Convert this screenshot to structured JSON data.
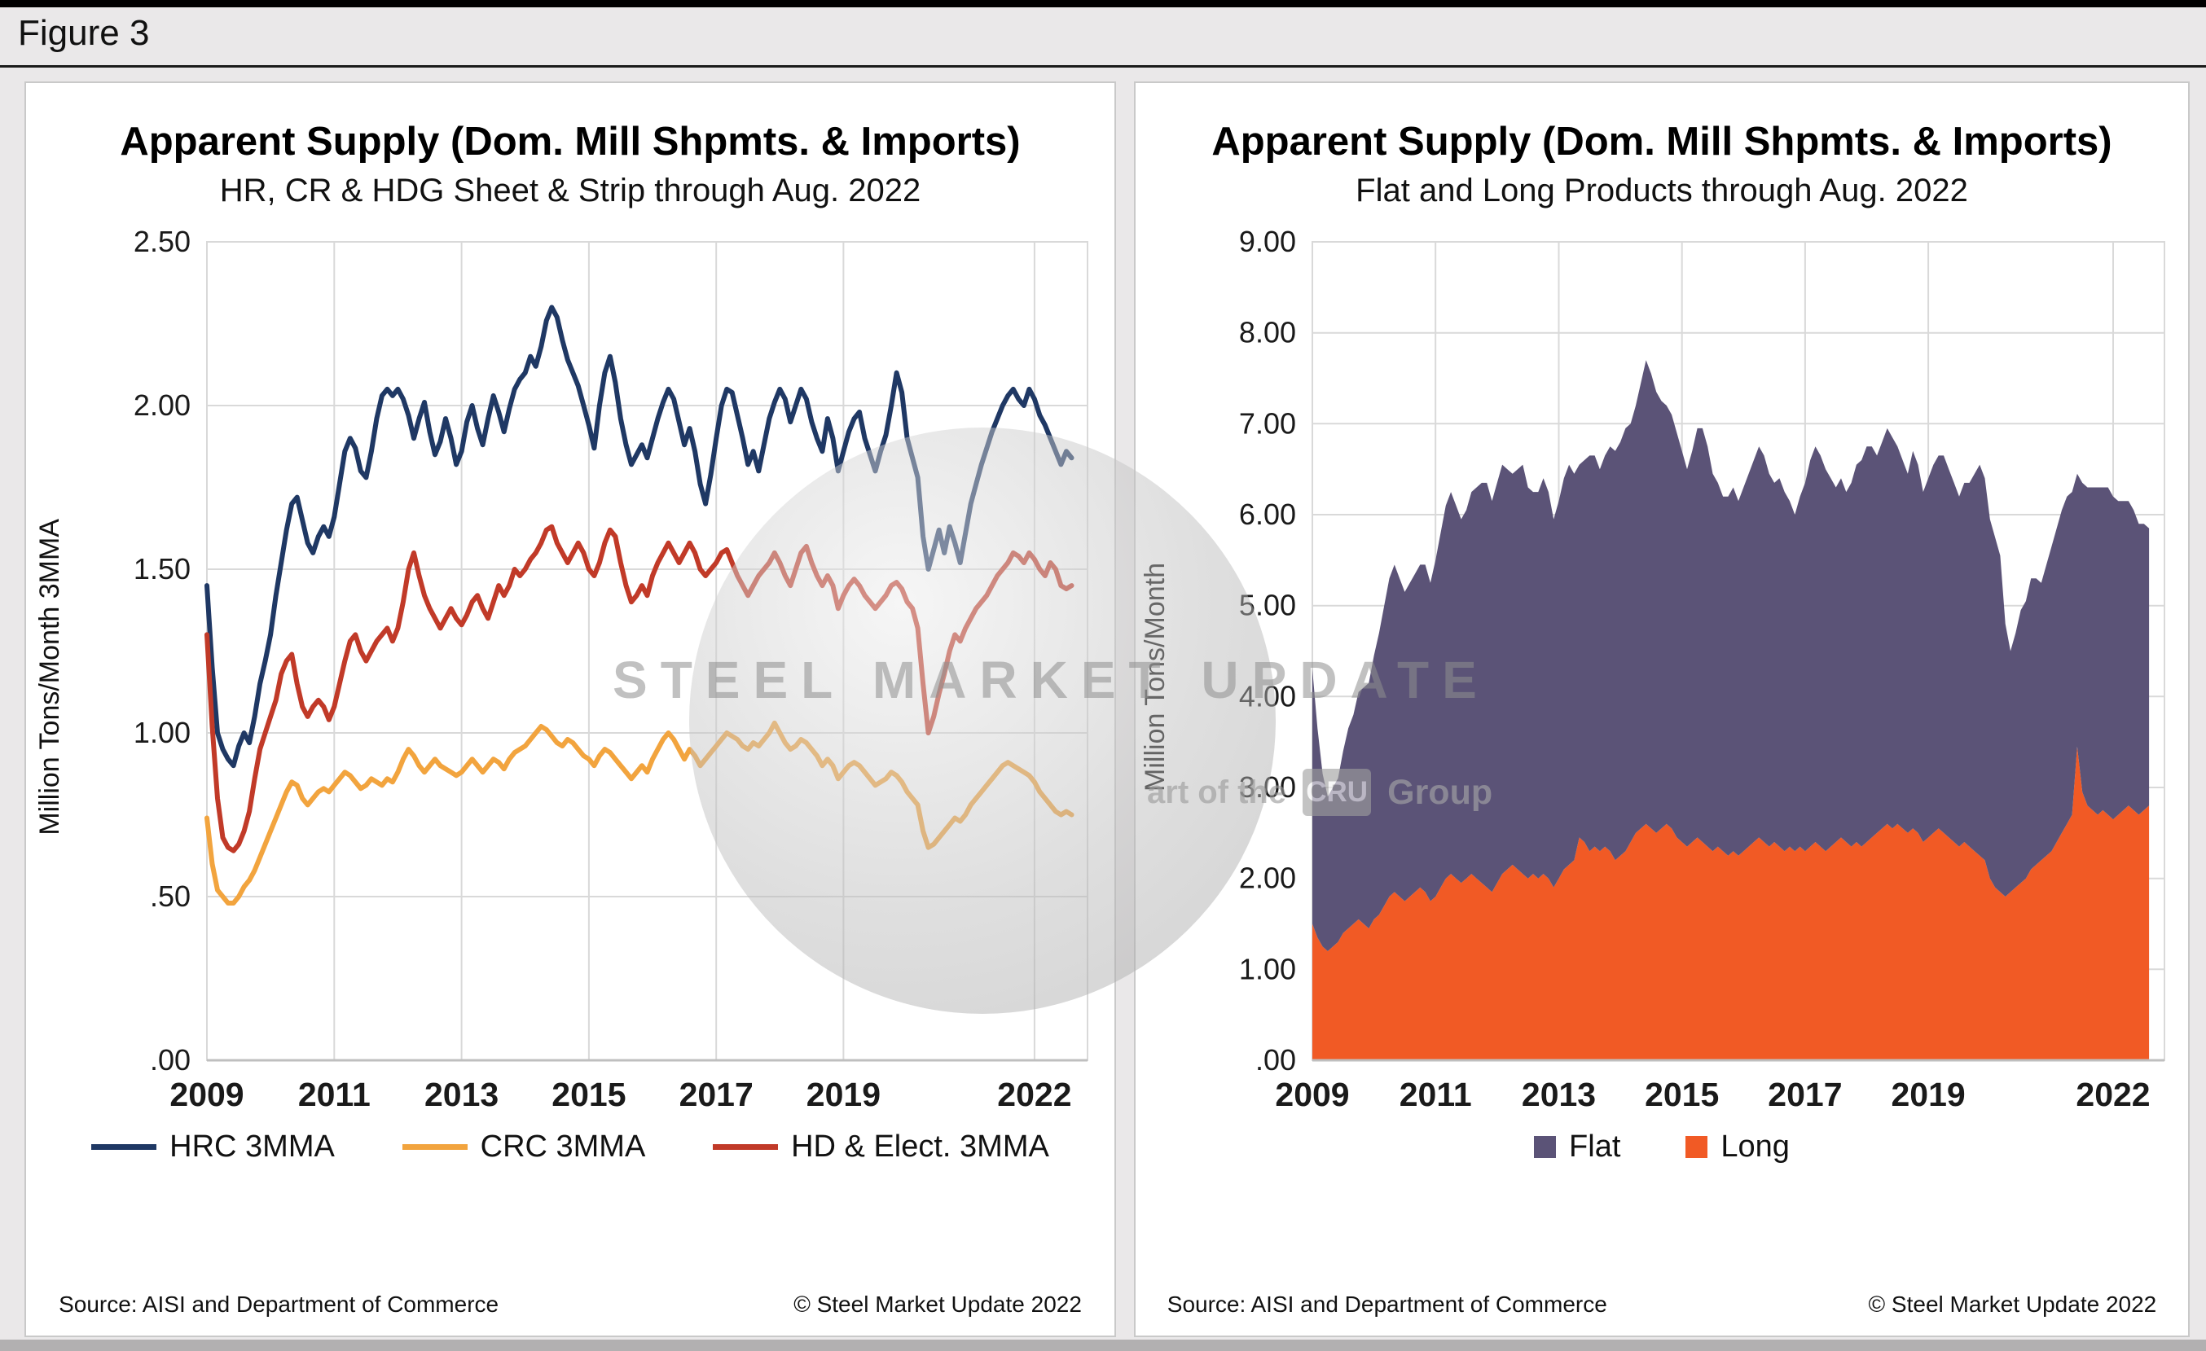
{
  "figure_label": "Figure 3",
  "watermark": {
    "line1": "STEEL MARKET UPDATE",
    "line2_prefix": "art of the",
    "line2_box": "CRU",
    "line2_suffix": "Group"
  },
  "chart_data": [
    {
      "type": "line",
      "title": "Apparent Supply (Dom. Mill Shpmts. & Imports)",
      "subtitle": "HR, CR & HDG Sheet & Strip through Aug. 2022",
      "ylabel": "Million Tons/Month 3MMA",
      "source": "Source: AISI and Department of Commerce",
      "copyright": "© Steel Market Update 2022",
      "x_start": "2009-01",
      "x_end": "2022-08",
      "ylim": [
        0,
        2.5
      ],
      "grid": true,
      "grid_color": "#d9d9d9",
      "legend_position": "bottom",
      "yticks": [
        {
          "v": 0.0,
          "label": ".00"
        },
        {
          "v": 0.5,
          "label": ".50"
        },
        {
          "v": 1.0,
          "label": "1.00"
        },
        {
          "v": 1.5,
          "label": "1.50"
        },
        {
          "v": 2.0,
          "label": "2.00"
        },
        {
          "v": 2.5,
          "label": "2.50"
        }
      ],
      "xticks": [
        {
          "m": 0,
          "label": "2009"
        },
        {
          "m": 24,
          "label": "2011"
        },
        {
          "m": 48,
          "label": "2013"
        },
        {
          "m": 72,
          "label": "2015"
        },
        {
          "m": 96,
          "label": "2017"
        },
        {
          "m": 120,
          "label": "2019"
        },
        {
          "m": 156,
          "label": "2022"
        }
      ],
      "series": [
        {
          "name": "HRC 3MMA",
          "color": "#1F3864",
          "values": [
            1.45,
            1.2,
            1.0,
            0.95,
            0.92,
            0.9,
            0.96,
            1.0,
            0.97,
            1.05,
            1.15,
            1.22,
            1.3,
            1.42,
            1.52,
            1.62,
            1.7,
            1.72,
            1.65,
            1.58,
            1.55,
            1.6,
            1.63,
            1.6,
            1.66,
            1.76,
            1.86,
            1.9,
            1.87,
            1.8,
            1.78,
            1.86,
            1.96,
            2.03,
            2.05,
            2.03,
            2.05,
            2.02,
            1.97,
            1.9,
            1.96,
            2.01,
            1.92,
            1.85,
            1.89,
            1.96,
            1.9,
            1.82,
            1.86,
            1.95,
            2.0,
            1.93,
            1.88,
            1.96,
            2.03,
            1.98,
            1.92,
            1.99,
            2.05,
            2.08,
            2.1,
            2.15,
            2.12,
            2.18,
            2.26,
            2.3,
            2.27,
            2.2,
            2.14,
            2.1,
            2.06,
            2.0,
            1.94,
            1.87,
            2.0,
            2.1,
            2.15,
            2.07,
            1.96,
            1.88,
            1.82,
            1.85,
            1.88,
            1.84,
            1.9,
            1.96,
            2.01,
            2.05,
            2.02,
            1.95,
            1.88,
            1.93,
            1.86,
            1.76,
            1.7,
            1.79,
            1.9,
            2.0,
            2.05,
            2.04,
            1.97,
            1.9,
            1.82,
            1.86,
            1.8,
            1.88,
            1.96,
            2.01,
            2.05,
            2.02,
            1.95,
            2.0,
            2.05,
            2.02,
            1.95,
            1.9,
            1.86,
            1.96,
            1.9,
            1.8,
            1.86,
            1.92,
            1.96,
            1.98,
            1.9,
            1.85,
            1.8,
            1.86,
            1.91,
            2.0,
            2.1,
            2.04,
            1.9,
            1.84,
            1.78,
            1.6,
            1.5,
            1.56,
            1.62,
            1.55,
            1.63,
            1.58,
            1.52,
            1.61,
            1.7,
            1.76,
            1.82,
            1.87,
            1.92,
            1.96,
            2.0,
            2.03,
            2.05,
            2.02,
            2.0,
            2.05,
            2.02,
            1.97,
            1.94,
            1.9,
            1.86,
            1.82,
            1.86,
            1.84
          ]
        },
        {
          "name": "CRC 3MMA",
          "color": "#F2A43E",
          "values": [
            0.74,
            0.6,
            0.52,
            0.5,
            0.48,
            0.48,
            0.5,
            0.53,
            0.55,
            0.58,
            0.62,
            0.66,
            0.7,
            0.74,
            0.78,
            0.82,
            0.85,
            0.84,
            0.8,
            0.78,
            0.8,
            0.82,
            0.83,
            0.82,
            0.84,
            0.86,
            0.88,
            0.87,
            0.85,
            0.83,
            0.84,
            0.86,
            0.85,
            0.84,
            0.86,
            0.85,
            0.88,
            0.92,
            0.95,
            0.93,
            0.9,
            0.88,
            0.9,
            0.92,
            0.9,
            0.89,
            0.88,
            0.87,
            0.88,
            0.9,
            0.92,
            0.9,
            0.88,
            0.9,
            0.92,
            0.91,
            0.89,
            0.92,
            0.94,
            0.95,
            0.96,
            0.98,
            1.0,
            1.02,
            1.01,
            0.99,
            0.97,
            0.96,
            0.98,
            0.97,
            0.95,
            0.93,
            0.92,
            0.9,
            0.93,
            0.95,
            0.94,
            0.92,
            0.9,
            0.88,
            0.86,
            0.88,
            0.9,
            0.88,
            0.92,
            0.95,
            0.98,
            1.0,
            0.98,
            0.95,
            0.92,
            0.95,
            0.93,
            0.9,
            0.92,
            0.94,
            0.96,
            0.98,
            1.0,
            0.99,
            0.98,
            0.96,
            0.95,
            0.97,
            0.96,
            0.98,
            1.0,
            1.03,
            1.0,
            0.97,
            0.95,
            0.96,
            0.98,
            0.97,
            0.95,
            0.93,
            0.9,
            0.92,
            0.9,
            0.86,
            0.88,
            0.9,
            0.91,
            0.9,
            0.88,
            0.86,
            0.84,
            0.85,
            0.86,
            0.88,
            0.87,
            0.85,
            0.82,
            0.8,
            0.78,
            0.7,
            0.65,
            0.66,
            0.68,
            0.7,
            0.72,
            0.74,
            0.73,
            0.75,
            0.78,
            0.8,
            0.82,
            0.84,
            0.86,
            0.88,
            0.9,
            0.91,
            0.9,
            0.89,
            0.88,
            0.87,
            0.85,
            0.82,
            0.8,
            0.78,
            0.76,
            0.75,
            0.76,
            0.75
          ]
        },
        {
          "name": "HD & Elect. 3MMA",
          "color": "#C13A28",
          "values": [
            1.3,
            1.02,
            0.8,
            0.68,
            0.65,
            0.64,
            0.66,
            0.7,
            0.76,
            0.86,
            0.95,
            1.0,
            1.05,
            1.1,
            1.18,
            1.22,
            1.24,
            1.15,
            1.08,
            1.05,
            1.08,
            1.1,
            1.08,
            1.04,
            1.08,
            1.15,
            1.22,
            1.28,
            1.3,
            1.25,
            1.22,
            1.25,
            1.28,
            1.3,
            1.32,
            1.28,
            1.32,
            1.4,
            1.5,
            1.55,
            1.48,
            1.42,
            1.38,
            1.35,
            1.32,
            1.35,
            1.38,
            1.35,
            1.33,
            1.36,
            1.4,
            1.42,
            1.38,
            1.35,
            1.4,
            1.45,
            1.42,
            1.45,
            1.5,
            1.48,
            1.5,
            1.53,
            1.55,
            1.58,
            1.62,
            1.63,
            1.58,
            1.55,
            1.52,
            1.55,
            1.58,
            1.55,
            1.5,
            1.48,
            1.52,
            1.58,
            1.62,
            1.6,
            1.52,
            1.45,
            1.4,
            1.42,
            1.45,
            1.42,
            1.48,
            1.52,
            1.55,
            1.58,
            1.55,
            1.52,
            1.55,
            1.58,
            1.55,
            1.5,
            1.48,
            1.5,
            1.52,
            1.55,
            1.56,
            1.52,
            1.48,
            1.45,
            1.42,
            1.45,
            1.48,
            1.5,
            1.52,
            1.55,
            1.52,
            1.48,
            1.45,
            1.5,
            1.55,
            1.57,
            1.52,
            1.48,
            1.45,
            1.48,
            1.45,
            1.38,
            1.42,
            1.45,
            1.47,
            1.45,
            1.42,
            1.4,
            1.38,
            1.4,
            1.42,
            1.45,
            1.46,
            1.44,
            1.4,
            1.38,
            1.32,
            1.15,
            1.0,
            1.05,
            1.12,
            1.18,
            1.25,
            1.3,
            1.28,
            1.32,
            1.35,
            1.38,
            1.4,
            1.42,
            1.45,
            1.48,
            1.5,
            1.52,
            1.55,
            1.54,
            1.52,
            1.55,
            1.53,
            1.5,
            1.48,
            1.52,
            1.5,
            1.45,
            1.44,
            1.45
          ]
        }
      ]
    },
    {
      "type": "stacked_area",
      "title": "Apparent Supply (Dom. Mill Shpmts. & Imports)",
      "subtitle": "Flat and Long Products through Aug. 2022",
      "ylabel": "Million Tons/Month",
      "source": "Source: AISI and Department of Commerce",
      "copyright": "© Steel Market Update 2022",
      "x_start": "2009-01",
      "x_end": "2022-08",
      "ylim": [
        0,
        9
      ],
      "grid": true,
      "grid_color": "#d9d9d9",
      "legend_position": "bottom",
      "stack_order": [
        "Long",
        "Flat"
      ],
      "yticks": [
        {
          "v": 0,
          "label": ".00"
        },
        {
          "v": 1,
          "label": "1.00"
        },
        {
          "v": 2,
          "label": "2.00"
        },
        {
          "v": 3,
          "label": "3.00"
        },
        {
          "v": 4,
          "label": "4.00"
        },
        {
          "v": 5,
          "label": "5.00"
        },
        {
          "v": 6,
          "label": "6.00"
        },
        {
          "v": 7,
          "label": "7.00"
        },
        {
          "v": 8,
          "label": "8.00"
        },
        {
          "v": 9,
          "label": "9.00"
        }
      ],
      "xticks": [
        {
          "m": 0,
          "label": "2009"
        },
        {
          "m": 24,
          "label": "2011"
        },
        {
          "m": 48,
          "label": "2013"
        },
        {
          "m": 72,
          "label": "2015"
        },
        {
          "m": 96,
          "label": "2017"
        },
        {
          "m": 120,
          "label": "2019"
        },
        {
          "m": 156,
          "label": "2022"
        }
      ],
      "series": [
        {
          "name": "Flat",
          "color": "#5B5377",
          "values": [
            2.8,
            2.3,
            1.9,
            1.7,
            1.75,
            1.8,
            2.0,
            2.2,
            2.3,
            2.5,
            2.6,
            2.7,
            2.9,
            3.1,
            3.3,
            3.5,
            3.6,
            3.5,
            3.4,
            3.45,
            3.5,
            3.55,
            3.6,
            3.5,
            3.7,
            3.9,
            4.1,
            4.2,
            4.1,
            4.0,
            4.05,
            4.2,
            4.3,
            4.4,
            4.45,
            4.3,
            4.4,
            4.5,
            4.4,
            4.3,
            4.4,
            4.5,
            4.3,
            4.2,
            4.25,
            4.35,
            4.25,
            4.05,
            4.15,
            4.3,
            4.4,
            4.25,
            4.1,
            4.2,
            4.35,
            4.3,
            4.2,
            4.3,
            4.45,
            4.5,
            4.55,
            4.65,
            4.6,
            4.7,
            4.9,
            5.1,
            5.0,
            4.85,
            4.7,
            4.6,
            4.55,
            4.45,
            4.3,
            4.15,
            4.3,
            4.5,
            4.55,
            4.4,
            4.15,
            4.0,
            3.9,
            3.95,
            4.0,
            3.9,
            4.0,
            4.1,
            4.2,
            4.3,
            4.25,
            4.1,
            3.95,
            4.05,
            3.95,
            3.8,
            3.7,
            3.85,
            4.05,
            4.25,
            4.35,
            4.3,
            4.2,
            4.05,
            3.9,
            3.95,
            3.85,
            4.0,
            4.15,
            4.25,
            4.35,
            4.3,
            4.15,
            4.25,
            4.35,
            4.3,
            4.15,
            4.05,
            3.95,
            4.15,
            4.05,
            3.85,
            3.95,
            4.05,
            4.1,
            4.15,
            4.05,
            3.95,
            3.85,
            3.95,
            4.0,
            4.15,
            4.3,
            4.2,
            3.95,
            3.85,
            3.7,
            3.0,
            2.65,
            2.8,
            3.0,
            3.05,
            3.2,
            3.15,
            3.05,
            3.2,
            3.35,
            3.45,
            3.55,
            3.6,
            3.55,
            3.0,
            3.4,
            3.5,
            3.55,
            3.6,
            3.55,
            3.6,
            3.55,
            3.45,
            3.4,
            3.35,
            3.3,
            3.2,
            3.15,
            3.05
          ]
        },
        {
          "name": "Long",
          "color": "#F15A25",
          "values": [
            1.5,
            1.35,
            1.25,
            1.2,
            1.25,
            1.3,
            1.4,
            1.45,
            1.5,
            1.55,
            1.5,
            1.45,
            1.55,
            1.6,
            1.7,
            1.8,
            1.85,
            1.8,
            1.75,
            1.8,
            1.85,
            1.9,
            1.85,
            1.75,
            1.8,
            1.9,
            2.0,
            2.05,
            2.0,
            1.95,
            2.0,
            2.05,
            2.0,
            1.95,
            1.9,
            1.85,
            1.95,
            2.05,
            2.1,
            2.15,
            2.1,
            2.05,
            2.0,
            2.05,
            2.0,
            2.05,
            2.0,
            1.9,
            2.0,
            2.1,
            2.15,
            2.2,
            2.45,
            2.4,
            2.3,
            2.35,
            2.3,
            2.35,
            2.3,
            2.2,
            2.25,
            2.3,
            2.4,
            2.5,
            2.55,
            2.6,
            2.55,
            2.5,
            2.55,
            2.6,
            2.55,
            2.45,
            2.4,
            2.35,
            2.4,
            2.45,
            2.4,
            2.35,
            2.3,
            2.35,
            2.3,
            2.25,
            2.3,
            2.25,
            2.3,
            2.35,
            2.4,
            2.45,
            2.4,
            2.35,
            2.4,
            2.35,
            2.3,
            2.35,
            2.3,
            2.35,
            2.3,
            2.35,
            2.4,
            2.35,
            2.3,
            2.35,
            2.4,
            2.45,
            2.4,
            2.35,
            2.4,
            2.35,
            2.4,
            2.45,
            2.5,
            2.55,
            2.6,
            2.55,
            2.6,
            2.55,
            2.5,
            2.55,
            2.5,
            2.4,
            2.45,
            2.5,
            2.55,
            2.5,
            2.45,
            2.4,
            2.35,
            2.4,
            2.35,
            2.3,
            2.25,
            2.2,
            2.0,
            1.9,
            1.85,
            1.8,
            1.85,
            1.9,
            1.95,
            2.0,
            2.1,
            2.15,
            2.2,
            2.25,
            2.3,
            2.4,
            2.5,
            2.6,
            2.7,
            3.45,
            2.95,
            2.8,
            2.75,
            2.7,
            2.75,
            2.7,
            2.65,
            2.7,
            2.75,
            2.8,
            2.75,
            2.7,
            2.75,
            2.8
          ]
        }
      ]
    }
  ]
}
